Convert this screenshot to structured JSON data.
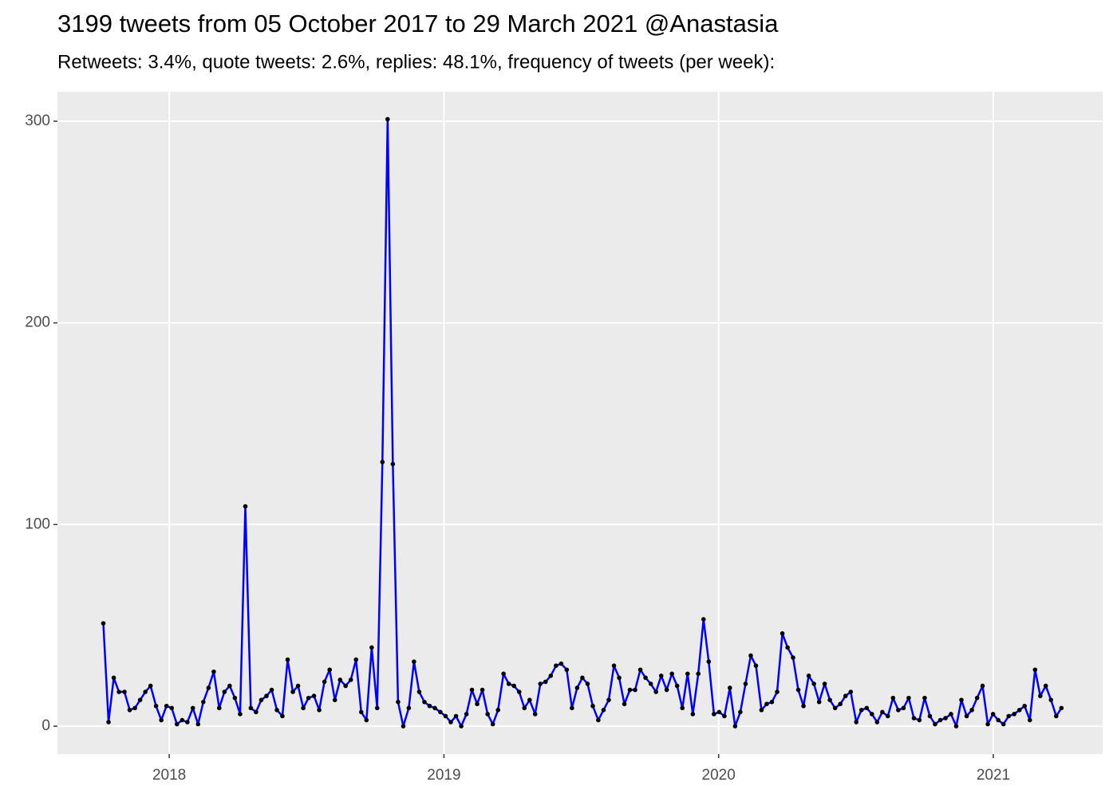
{
  "chart_data": {
    "type": "line",
    "title": "3199 tweets from 05 October 2017 to 29 March 2021 @Anastasia",
    "subtitle": "Retweets: 3.4%, quote tweets: 2.6%, replies: 48.1%, frequency of tweets (per week):",
    "x": [
      2017.76,
      2017.779,
      2017.798,
      2017.817,
      2017.837,
      2017.856,
      2017.875,
      2017.894,
      2017.913,
      2017.932,
      2017.952,
      2017.971,
      2017.99,
      2018.009,
      2018.028,
      2018.047,
      2018.066,
      2018.086,
      2018.105,
      2018.124,
      2018.143,
      2018.162,
      2018.182,
      2018.201,
      2018.22,
      2018.239,
      2018.258,
      2018.277,
      2018.297,
      2018.316,
      2018.335,
      2018.354,
      2018.373,
      2018.392,
      2018.412,
      2018.431,
      2018.45,
      2018.469,
      2018.488,
      2018.507,
      2018.527,
      2018.546,
      2018.565,
      2018.584,
      2018.603,
      2018.622,
      2018.642,
      2018.661,
      2018.68,
      2018.699,
      2018.718,
      2018.737,
      2018.757,
      2018.776,
      2018.795,
      2018.814,
      2018.833,
      2018.852,
      2018.872,
      2018.891,
      2018.91,
      2018.929,
      2018.948,
      2018.967,
      2018.987,
      2019.006,
      2019.025,
      2019.044,
      2019.063,
      2019.082,
      2019.102,
      2019.121,
      2019.14,
      2019.159,
      2019.178,
      2019.197,
      2019.217,
      2019.236,
      2019.255,
      2019.274,
      2019.293,
      2019.312,
      2019.332,
      2019.351,
      2019.37,
      2019.389,
      2019.408,
      2019.427,
      2019.447,
      2019.466,
      2019.485,
      2019.504,
      2019.523,
      2019.542,
      2019.562,
      2019.581,
      2019.6,
      2019.619,
      2019.638,
      2019.657,
      2019.677,
      2019.696,
      2019.715,
      2019.734,
      2019.753,
      2019.772,
      2019.791,
      2019.811,
      2019.83,
      2019.849,
      2019.868,
      2019.887,
      2019.906,
      2019.926,
      2019.945,
      2019.964,
      2019.983,
      2020.002,
      2020.021,
      2020.041,
      2020.06,
      2020.079,
      2020.098,
      2020.117,
      2020.136,
      2020.156,
      2020.175,
      2020.194,
      2020.213,
      2020.232,
      2020.251,
      2020.271,
      2020.29,
      2020.309,
      2020.328,
      2020.347,
      2020.366,
      2020.386,
      2020.405,
      2020.424,
      2020.443,
      2020.462,
      2020.481,
      2020.501,
      2020.52,
      2020.539,
      2020.558,
      2020.577,
      2020.596,
      2020.616,
      2020.635,
      2020.654,
      2020.673,
      2020.692,
      2020.711,
      2020.731,
      2020.75,
      2020.769,
      2020.788,
      2020.807,
      2020.826,
      2020.846,
      2020.865,
      2020.884,
      2020.903,
      2020.922,
      2020.941,
      2020.961,
      2020.98,
      2020.999,
      2021.018,
      2021.037,
      2021.056,
      2021.076,
      2021.095,
      2021.114,
      2021.133,
      2021.152,
      2021.171,
      2021.191,
      2021.21,
      2021.229,
      2021.248
    ],
    "values": [
      51,
      2,
      24,
      17,
      17,
      8,
      9,
      13,
      17,
      20,
      10,
      3,
      10,
      9,
      1,
      3,
      2,
      9,
      1,
      12,
      19,
      27,
      9,
      17,
      20,
      14,
      6,
      109,
      9,
      7,
      13,
      15,
      18,
      8,
      5,
      33,
      17,
      20,
      9,
      14,
      15,
      8,
      22,
      28,
      13,
      23,
      20,
      23,
      33,
      7,
      3,
      39,
      9,
      131,
      301,
      130,
      12,
      0,
      9,
      32,
      17,
      12,
      10,
      9,
      7,
      5,
      2,
      5,
      0,
      6,
      18,
      11,
      18,
      6,
      1,
      8,
      26,
      21,
      20,
      17,
      9,
      13,
      6,
      21,
      22,
      25,
      30,
      31,
      28,
      9,
      19,
      24,
      21,
      10,
      3,
      8,
      13,
      30,
      24,
      11,
      18,
      18,
      28,
      24,
      21,
      17,
      25,
      18,
      26,
      20,
      9,
      26,
      6,
      26,
      53,
      32,
      6,
      7,
      5,
      19,
      0,
      7,
      21,
      35,
      30,
      8,
      11,
      12,
      17,
      46,
      39,
      34,
      18,
      10,
      25,
      21,
      12,
      21,
      13,
      9,
      11,
      15,
      17,
      2,
      8,
      9,
      6,
      2,
      7,
      5,
      14,
      8,
      9,
      14,
      4,
      3,
      14,
      5,
      1,
      3,
      4,
      6,
      0,
      13,
      5,
      8,
      14,
      20,
      1,
      6,
      3,
      1,
      5,
      6,
      8,
      10,
      3,
      28,
      15,
      20,
      13,
      5,
      9
    ],
    "color": "#0000ff",
    "point_color": "#000000",
    "xlim": [
      2017.593,
      2021.398
    ],
    "xticks": [
      2018,
      2019,
      2020,
      2021
    ],
    "ylim": [
      -13.85,
      314.6
    ],
    "yticks": [
      0,
      100,
      200,
      300
    ],
    "grid": true
  }
}
